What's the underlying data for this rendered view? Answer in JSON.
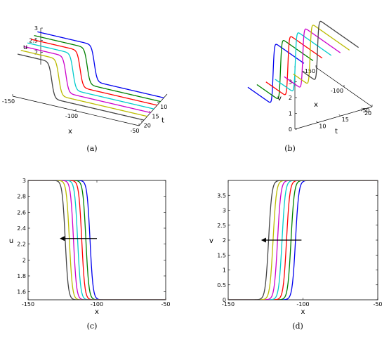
{
  "chart_data": [
    {
      "id": "a",
      "type": "line",
      "projection": "3d-waterfall",
      "caption": "(a)",
      "xlabel": "x",
      "tlabel": "t",
      "zlabel": "u",
      "x_range": [
        -150,
        -50
      ],
      "t_range": [
        5,
        22
      ],
      "z_range": [
        1.5,
        3
      ],
      "x_ticks": [
        "-150",
        "-100",
        "-50"
      ],
      "t_ticks": [
        "10",
        "15",
        "20"
      ],
      "z_ticks": [
        "2",
        "2.5",
        "3"
      ],
      "kink_from": 3,
      "kink_to": 1.5,
      "series": [
        {
          "t": 7,
          "x0": -105,
          "color": "#0000ee"
        },
        {
          "t": 9,
          "x0": -108,
          "color": "#008000"
        },
        {
          "t": 11,
          "x0": -111,
          "color": "#ff0000"
        },
        {
          "t": 13,
          "x0": -114,
          "color": "#00cccc"
        },
        {
          "t": 15,
          "x0": -117,
          "color": "#cc00cc"
        },
        {
          "t": 17,
          "x0": -120,
          "color": "#bbbb00"
        },
        {
          "t": 19,
          "x0": -123,
          "color": "#444444"
        }
      ]
    },
    {
      "id": "b",
      "type": "line",
      "projection": "3d-waterfall",
      "caption": "(b)",
      "xlabel": "x",
      "tlabel": "t",
      "zlabel": "v",
      "x_range": [
        -150,
        -50
      ],
      "t_range": [
        5,
        22
      ],
      "z_range": [
        0,
        4
      ],
      "x_ticks": [
        "-150",
        "-100",
        "-50"
      ],
      "t_ticks": [
        "10",
        "15",
        "20"
      ],
      "z_ticks": [
        "0",
        "1",
        "2",
        "3"
      ],
      "kink_from": 0,
      "kink_to": 4,
      "series": [
        {
          "t": 7,
          "x0": -105,
          "color": "#0000ee"
        },
        {
          "t": 9,
          "x0": -108,
          "color": "#008000"
        },
        {
          "t": 11,
          "x0": -111,
          "color": "#ff0000"
        },
        {
          "t": 13,
          "x0": -114,
          "color": "#00cccc"
        },
        {
          "t": 15,
          "x0": -117,
          "color": "#cc00cc"
        },
        {
          "t": 17,
          "x0": -120,
          "color": "#bbbb00"
        },
        {
          "t": 19,
          "x0": -123,
          "color": "#444444"
        }
      ]
    },
    {
      "id": "c",
      "type": "line",
      "caption": "(c)",
      "xlabel": "x",
      "ylabel": "u",
      "xlim": [
        -150,
        -50
      ],
      "ylim": [
        1.5,
        3
      ],
      "x_ticks": [
        -150,
        -100,
        -50
      ],
      "y_ticks": [
        1.6,
        1.8,
        2,
        2.2,
        2.4,
        2.6,
        2.8,
        3
      ],
      "kink_from": 3,
      "kink_to": 1.5,
      "arrow": {
        "from_x": -100,
        "to_x": -127,
        "y": 2.27
      },
      "series": [
        {
          "x0": -105,
          "color": "#0000ee"
        },
        {
          "x0": -108,
          "color": "#008000"
        },
        {
          "x0": -111,
          "color": "#ff0000"
        },
        {
          "x0": -114,
          "color": "#00cccc"
        },
        {
          "x0": -117,
          "color": "#cc00cc"
        },
        {
          "x0": -120,
          "color": "#bbbb00"
        },
        {
          "x0": -123,
          "color": "#444444"
        }
      ]
    },
    {
      "id": "d",
      "type": "line",
      "caption": "(d)",
      "xlabel": "x",
      "ylabel": "v",
      "xlim": [
        -150,
        -50
      ],
      "ylim": [
        0,
        4
      ],
      "x_ticks": [
        -150,
        -100,
        -50
      ],
      "y_ticks": [
        0,
        0.5,
        1,
        1.5,
        2,
        2.5,
        3,
        3.5
      ],
      "kink_from": 0,
      "kink_to": 4,
      "arrow": {
        "from_x": -101,
        "to_x": -128,
        "y": 2
      },
      "series": [
        {
          "x0": -105,
          "color": "#0000ee"
        },
        {
          "x0": -108,
          "color": "#008000"
        },
        {
          "x0": -111,
          "color": "#ff0000"
        },
        {
          "x0": -114,
          "color": "#00cccc"
        },
        {
          "x0": -117,
          "color": "#cc00cc"
        },
        {
          "x0": -120,
          "color": "#bbbb00"
        },
        {
          "x0": -123,
          "color": "#444444"
        }
      ]
    }
  ]
}
